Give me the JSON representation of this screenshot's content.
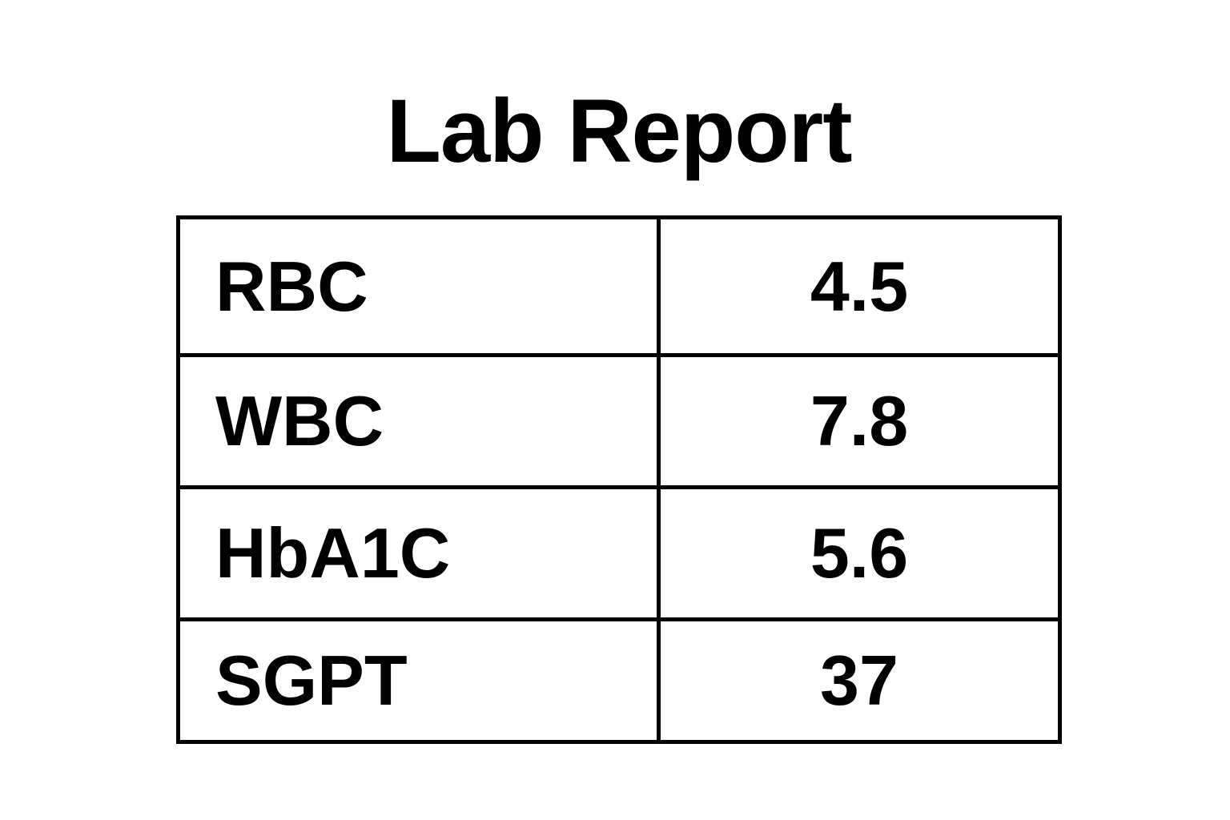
{
  "title": "Lab Report",
  "rows": [
    {
      "name": "RBC",
      "value": "4.5"
    },
    {
      "name": "WBC",
      "value": "7.8"
    },
    {
      "name": "HbA1C",
      "value": "5.6"
    },
    {
      "name": "SGPT",
      "value": "37"
    }
  ]
}
